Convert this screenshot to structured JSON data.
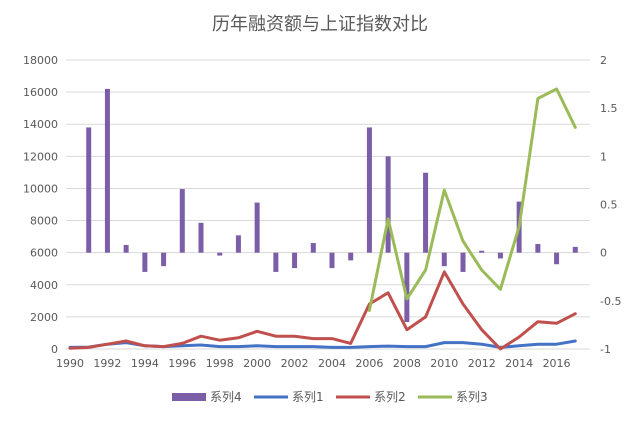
{
  "chart_data": {
    "type": "bar",
    "title": "历年融资额与上证指数对比",
    "categories": [
      1990,
      1991,
      1992,
      1993,
      1994,
      1995,
      1996,
      1997,
      1998,
      1999,
      2000,
      2001,
      2002,
      2003,
      2004,
      2005,
      2006,
      2007,
      2008,
      2009,
      2010,
      2011,
      2012,
      2013,
      2014,
      2015,
      2016,
      2017
    ],
    "x_ticks": [
      "1990",
      "1992",
      "1994",
      "1996",
      "1998",
      "2000",
      "2002",
      "2004",
      "2006",
      "2008",
      "2010",
      "2012",
      "2014",
      "2016"
    ],
    "y_left": {
      "min": 0,
      "max": 18000,
      "ticks": [
        "0",
        "2000",
        "4000",
        "6000",
        "8000",
        "10000",
        "12000",
        "14000",
        "16000",
        "18000"
      ]
    },
    "y_right": {
      "min": -1,
      "max": 2,
      "ticks": [
        "-1",
        "-0.5",
        "0",
        "0.5",
        "1",
        "1.5",
        "2"
      ]
    },
    "grid": true,
    "legend_position": "bottom",
    "series": [
      {
        "name": "系列4",
        "kind": "bar",
        "axis": "right",
        "color": "#7B5EA7",
        "values": [
          0,
          1.3,
          1.7,
          0.08,
          -0.2,
          -0.14,
          0.66,
          0.31,
          -0.03,
          0.18,
          0.52,
          -0.2,
          -0.16,
          0.1,
          -0.16,
          -0.08,
          1.3,
          1.0,
          -0.72,
          0.83,
          -0.14,
          -0.2,
          0.02,
          -0.06,
          0.53,
          0.09,
          -0.12,
          0.06
        ]
      },
      {
        "name": "系列1",
        "kind": "line",
        "axis": "left",
        "color": "#4472C4",
        "values": [
          100,
          120,
          300,
          400,
          200,
          150,
          200,
          250,
          150,
          150,
          200,
          150,
          150,
          150,
          100,
          100,
          150,
          180,
          150,
          150,
          400,
          400,
          300,
          100,
          200,
          300,
          300,
          500
        ]
      },
      {
        "name": "系列2",
        "kind": "line",
        "axis": "left",
        "color": "#C0504D",
        "values": [
          50,
          100,
          300,
          500,
          200,
          150,
          350,
          800,
          550,
          700,
          1100,
          800,
          800,
          650,
          650,
          350,
          2800,
          3500,
          1200,
          2000,
          4800,
          2800,
          1200,
          0,
          750,
          1700,
          1600,
          2200
        ]
      },
      {
        "name": "系列3",
        "kind": "line",
        "axis": "right",
        "color": "#9BBB59",
        "values": [
          null,
          null,
          null,
          null,
          null,
          null,
          null,
          null,
          null,
          null,
          null,
          null,
          null,
          null,
          null,
          null,
          -0.6,
          0.35,
          -0.48,
          -0.18,
          0.65,
          0.12,
          -0.18,
          -0.38,
          0.27,
          1.6,
          1.7,
          1.3
        ]
      }
    ],
    "legend": [
      "系列4",
      "系列1",
      "系列2",
      "系列3"
    ]
  }
}
